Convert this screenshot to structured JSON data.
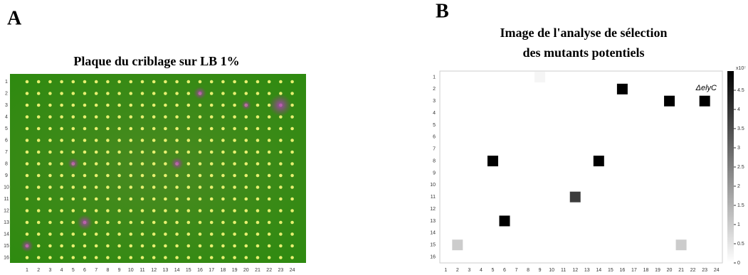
{
  "chart_data": [
    {
      "type": "plate",
      "panel": "A",
      "title": "Plaque du criblage  sur LB 1%",
      "categories": [
        "1",
        "2",
        "3",
        "4",
        "5",
        "6",
        "7",
        "8",
        "9",
        "10",
        "11",
        "12",
        "13",
        "14",
        "15",
        "16",
        "17",
        "18",
        "19",
        "20",
        "21",
        "22",
        "23",
        "24"
      ],
      "rows": [
        "1",
        "2",
        "3",
        "4",
        "5",
        "6",
        "7",
        "8",
        "9",
        "10",
        "11",
        "12",
        "13",
        "14",
        "15",
        "16"
      ]
    },
    {
      "type": "heatmap",
      "panel": "B",
      "title": [
        "Image de l'analyse de sélection",
        "des mutants potentiels"
      ],
      "categories": [
        "1",
        "2",
        "3",
        "4",
        "5",
        "6",
        "7",
        "8",
        "9",
        "10",
        "11",
        "12",
        "13",
        "14",
        "15",
        "16",
        "17",
        "18",
        "19",
        "20",
        "21",
        "22",
        "23",
        "24"
      ],
      "rows": [
        "1",
        "2",
        "3",
        "4",
        "5",
        "6",
        "7",
        "8",
        "9",
        "10",
        "11",
        "12",
        "13",
        "14",
        "15",
        "16"
      ],
      "cells": {
        "col": [
          9,
          16,
          20,
          23,
          5,
          14,
          12,
          6,
          2,
          21
        ],
        "row": [
          1,
          2,
          3,
          3,
          8,
          8,
          11,
          13,
          15,
          15
        ],
        "values": [
          0.2,
          5,
          5,
          5,
          5,
          5,
          3.8,
          5,
          1,
          1
        ]
      },
      "annotation": "ΔelyC",
      "zlim": [
        0,
        5
      ],
      "zticks": [
        0,
        0.5,
        1,
        1.5,
        2,
        2.5,
        3,
        3.5,
        4,
        4.5
      ],
      "zexponent": "x10⁷"
    }
  ]
}
